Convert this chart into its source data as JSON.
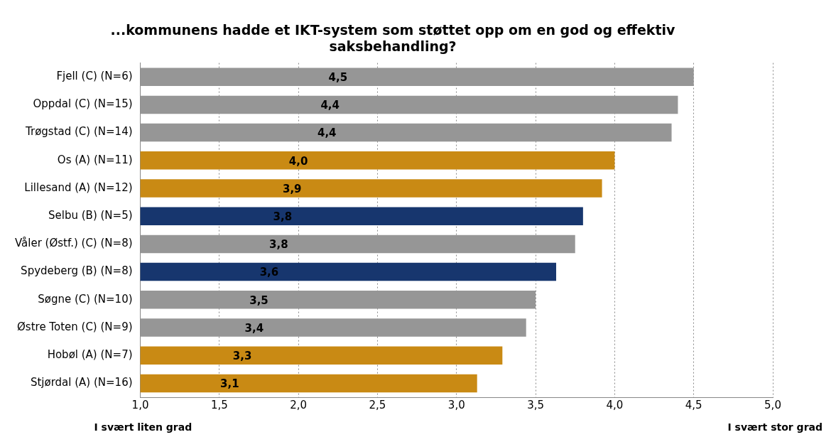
{
  "chart_data": {
    "type": "bar",
    "orientation": "horizontal",
    "title": "...kommunens hadde et IKT-system som støttet opp om en god og effektiv saksbehandling?",
    "categories": [
      "Fjell (C) (N=6)",
      "Oppdal (C) (N=15)",
      "Trøgstad (C) (N=14)",
      "Os (A) (N=11)",
      "Lillesand (A) (N=12)",
      "Selbu (B) (N=5)",
      "Våler (Østf.) (C) (N=8)",
      "Spydeberg (B) (N=8)",
      "Søgne (C) (N=10)",
      "Østre Toten (C) (N=9)",
      "Hobøl (A) (N=7)",
      "Stjørdal (A) (N=16)"
    ],
    "values": [
      4.5,
      4.4,
      4.36,
      4.0,
      3.92,
      3.8,
      3.75,
      3.63,
      3.5,
      3.44,
      3.29,
      3.13
    ],
    "value_labels": [
      "4,5",
      "4,4",
      "4,4",
      "4,0",
      "3,9",
      "3,8",
      "3,8",
      "3,6",
      "3,5",
      "3,4",
      "3,3",
      "3,1"
    ],
    "colors": [
      "#969696",
      "#969696",
      "#969696",
      "#c98a14",
      "#c98a14",
      "#17366e",
      "#969696",
      "#17366e",
      "#969696",
      "#969696",
      "#c98a14",
      "#c98a14"
    ],
    "xlim": [
      1,
      5
    ],
    "xticks": [
      {
        "value": 1,
        "label": "1,0"
      },
      {
        "value": 1.5,
        "label": "1,5"
      },
      {
        "value": 2,
        "label": "2,0"
      },
      {
        "value": 2.5,
        "label": "2,5"
      },
      {
        "value": 3,
        "label": "3,0"
      },
      {
        "value": 3.5,
        "label": "3,5"
      },
      {
        "value": 4,
        "label": "4,0"
      },
      {
        "value": 4.5,
        "label": "4,5"
      },
      {
        "value": 5,
        "label": "5,0"
      }
    ],
    "grid": "x",
    "legend": false,
    "annotations": [
      "I svært liten grad",
      "I svært stor grad"
    ]
  }
}
